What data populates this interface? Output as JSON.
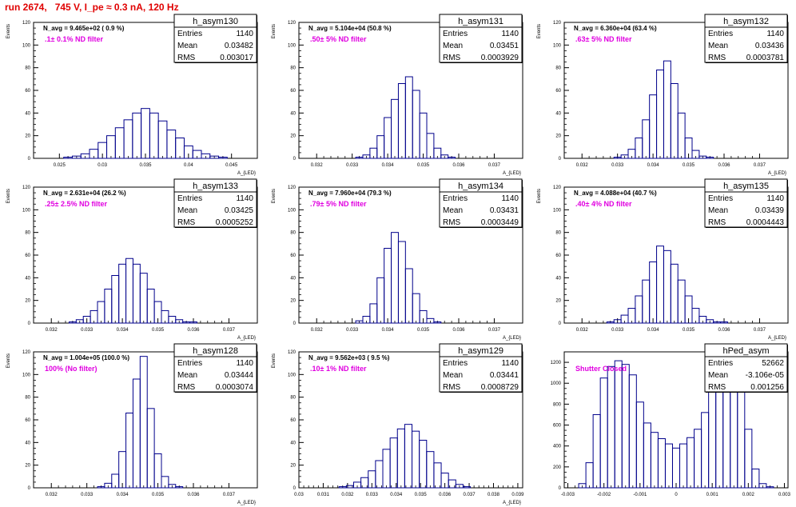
{
  "page_title": "run 2674,   745 V, I_pe ≈ 0.3 nA, 120 Hz",
  "colors": {
    "histogram": "#00008b",
    "annotation": "#e000e0",
    "title": "#e00000",
    "axis": "#000000"
  },
  "chart_data": [
    {
      "type": "histogram",
      "name": "h_asym130",
      "avg": "N_avg = 9.465e+02 ( 0.9 %)",
      "filter": ".1± 0.1% ND filter",
      "ylabel": "Events",
      "xlabel": "A_{LED}",
      "stats": [
        {
          "label": "Entries",
          "value": "1140"
        },
        {
          "label": "Mean",
          "value": "0.03482"
        },
        {
          "label": "RMS",
          "value": "0.003017"
        }
      ],
      "xlim": [
        0.022,
        0.048
      ],
      "ylim": [
        0,
        120
      ],
      "xticks": [
        0.025,
        0.03,
        0.035,
        0.04,
        0.045
      ],
      "xtick_labels": [
        "0.025",
        "0.03",
        "0.035",
        "0.04",
        "0.045"
      ],
      "yticks": [
        0,
        20,
        40,
        60,
        80,
        100,
        120
      ],
      "x": [
        0.025,
        0.026,
        0.027,
        0.028,
        0.029,
        0.03,
        0.031,
        0.032,
        0.033,
        0.034,
        0.035,
        0.036,
        0.037,
        0.038,
        0.039,
        0.04,
        0.041,
        0.042,
        0.043,
        0.044,
        0.045
      ],
      "y": [
        0,
        1,
        2,
        4,
        8,
        14,
        20,
        27,
        34,
        40,
        44,
        40,
        33,
        25,
        18,
        11,
        7,
        4,
        2,
        1,
        0
      ]
    },
    {
      "type": "histogram",
      "name": "h_asym131",
      "avg": "N_avg = 5.104e+04 (50.8 %)",
      "filter": ".50± 5% ND filter",
      "ylabel": "Events",
      "xlabel": "A_{LED}",
      "stats": [
        {
          "label": "Entries",
          "value": "1140"
        },
        {
          "label": "Mean",
          "value": "0.03451"
        },
        {
          "label": "RMS",
          "value": "0.0003929"
        }
      ],
      "xlim": [
        0.0315,
        0.0378
      ],
      "ylim": [
        0,
        120
      ],
      "xticks": [
        0.032,
        0.033,
        0.034,
        0.035,
        0.036,
        0.037
      ],
      "xtick_labels": [
        "0.032",
        "0.033",
        "0.034",
        "0.035",
        "0.036",
        "0.037"
      ],
      "yticks": [
        0,
        20,
        40,
        60,
        80,
        100,
        120
      ],
      "x": [
        0.0332,
        0.0334,
        0.0336,
        0.0338,
        0.034,
        0.0342,
        0.0344,
        0.0346,
        0.0348,
        0.035,
        0.0352,
        0.0354,
        0.0356,
        0.0358
      ],
      "y": [
        1,
        3,
        9,
        20,
        36,
        52,
        66,
        72,
        60,
        40,
        22,
        9,
        3,
        1
      ]
    },
    {
      "type": "histogram",
      "name": "h_asym132",
      "avg": "N_avg = 6.360e+04 (63.4 %)",
      "filter": ".63± 5% ND filter",
      "ylabel": "Events",
      "xlabel": "A_{LED}",
      "stats": [
        {
          "label": "Entries",
          "value": "1140"
        },
        {
          "label": "Mean",
          "value": "0.03436"
        },
        {
          "label": "RMS",
          "value": "0.0003781"
        }
      ],
      "xlim": [
        0.0315,
        0.0378
      ],
      "ylim": [
        0,
        120
      ],
      "xticks": [
        0.032,
        0.033,
        0.034,
        0.035,
        0.036,
        0.037
      ],
      "xtick_labels": [
        "0.032",
        "0.033",
        "0.034",
        "0.035",
        "0.036",
        "0.037"
      ],
      "yticks": [
        0,
        20,
        40,
        60,
        80,
        100,
        120
      ],
      "x": [
        0.033,
        0.0332,
        0.0334,
        0.0336,
        0.0338,
        0.034,
        0.0342,
        0.0344,
        0.0346,
        0.0348,
        0.035,
        0.0352,
        0.0354,
        0.0356
      ],
      "y": [
        1,
        3,
        8,
        18,
        34,
        56,
        78,
        86,
        66,
        40,
        18,
        7,
        2,
        1
      ]
    },
    {
      "type": "histogram",
      "name": "h_asym133",
      "avg": "N_avg = 2.631e+04 (26.2 %)",
      "filter": ".25± 2.5% ND filter",
      "ylabel": "Events",
      "xlabel": "A_{LED}",
      "stats": [
        {
          "label": "Entries",
          "value": "1140"
        },
        {
          "label": "Mean",
          "value": "0.03425"
        },
        {
          "label": "RMS",
          "value": "0.0005252"
        }
      ],
      "xlim": [
        0.0315,
        0.0378
      ],
      "ylim": [
        0,
        120
      ],
      "xticks": [
        0.032,
        0.033,
        0.034,
        0.035,
        0.036,
        0.037
      ],
      "xtick_labels": [
        "0.032",
        "0.033",
        "0.034",
        "0.035",
        "0.036",
        "0.037"
      ],
      "yticks": [
        0,
        20,
        40,
        60,
        80,
        100,
        120
      ],
      "x": [
        0.0326,
        0.0328,
        0.033,
        0.0332,
        0.0334,
        0.0336,
        0.0338,
        0.034,
        0.0342,
        0.0344,
        0.0346,
        0.0348,
        0.035,
        0.0352,
        0.0354,
        0.0356,
        0.0358,
        0.036
      ],
      "y": [
        1,
        3,
        6,
        11,
        19,
        30,
        42,
        52,
        57,
        52,
        44,
        30,
        19,
        11,
        6,
        3,
        1,
        1
      ]
    },
    {
      "type": "histogram",
      "name": "h_asym134",
      "avg": "N_avg = 7.960e+04 (79.3 %)",
      "filter": ".79± 5% ND filter",
      "ylabel": "Events",
      "xlabel": "A_{LED}",
      "stats": [
        {
          "label": "Entries",
          "value": "1140"
        },
        {
          "label": "Mean",
          "value": "0.03431"
        },
        {
          "label": "RMS",
          "value": "0.0003449"
        }
      ],
      "xlim": [
        0.0315,
        0.0378
      ],
      "ylim": [
        0,
        120
      ],
      "xticks": [
        0.032,
        0.033,
        0.034,
        0.035,
        0.036,
        0.037
      ],
      "xtick_labels": [
        "0.032",
        "0.033",
        "0.034",
        "0.035",
        "0.036",
        "0.037"
      ],
      "yticks": [
        0,
        20,
        40,
        60,
        80,
        100,
        120
      ],
      "x": [
        0.0332,
        0.0334,
        0.0336,
        0.0338,
        0.034,
        0.0342,
        0.0344,
        0.0346,
        0.0348,
        0.035,
        0.0352,
        0.0354
      ],
      "y": [
        2,
        6,
        17,
        40,
        66,
        80,
        72,
        48,
        26,
        11,
        4,
        1
      ]
    },
    {
      "type": "histogram",
      "name": "h_asym135",
      "avg": "N_avg = 4.088e+04 (40.7 %)",
      "filter": ".40± 4% ND filter",
      "ylabel": "Events",
      "xlabel": "A_{LED}",
      "stats": [
        {
          "label": "Entries",
          "value": "1140"
        },
        {
          "label": "Mean",
          "value": "0.03439"
        },
        {
          "label": "RMS",
          "value": "0.0004443"
        }
      ],
      "xlim": [
        0.0315,
        0.0378
      ],
      "ylim": [
        0,
        120
      ],
      "xticks": [
        0.032,
        0.033,
        0.034,
        0.035,
        0.036,
        0.037
      ],
      "xtick_labels": [
        "0.032",
        "0.033",
        "0.034",
        "0.035",
        "0.036",
        "0.037"
      ],
      "yticks": [
        0,
        20,
        40,
        60,
        80,
        100,
        120
      ],
      "x": [
        0.0328,
        0.033,
        0.0332,
        0.0334,
        0.0336,
        0.0338,
        0.034,
        0.0342,
        0.0344,
        0.0346,
        0.0348,
        0.035,
        0.0352,
        0.0354,
        0.0356,
        0.0358,
        0.036
      ],
      "y": [
        1,
        3,
        7,
        13,
        24,
        38,
        54,
        68,
        64,
        52,
        38,
        24,
        13,
        6,
        3,
        1,
        1
      ]
    },
    {
      "type": "histogram",
      "name": "h_asym128",
      "avg": "N_avg = 1.004e+05 (100.0 %)",
      "filter": "100% (No filter)",
      "ylabel": "Events",
      "xlabel": "A_{LED}",
      "stats": [
        {
          "label": "Entries",
          "value": "1140"
        },
        {
          "label": "Mean",
          "value": "0.03444"
        },
        {
          "label": "RMS",
          "value": "0.0003074"
        }
      ],
      "xlim": [
        0.0315,
        0.0378
      ],
      "ylim": [
        0,
        120
      ],
      "xticks": [
        0.032,
        0.033,
        0.034,
        0.035,
        0.036,
        0.037
      ],
      "xtick_labels": [
        "0.032",
        "0.033",
        "0.034",
        "0.035",
        "0.036",
        "0.037"
      ],
      "yticks": [
        0,
        20,
        40,
        60,
        80,
        100,
        120
      ],
      "x": [
        0.0334,
        0.0336,
        0.0338,
        0.034,
        0.0342,
        0.0344,
        0.0346,
        0.0348,
        0.035,
        0.0352,
        0.0354,
        0.0356
      ],
      "y": [
        1,
        4,
        12,
        32,
        66,
        96,
        116,
        70,
        30,
        10,
        3,
        1
      ]
    },
    {
      "type": "histogram",
      "name": "h_asym129",
      "avg": "N_avg = 9.562e+03 ( 9.5 %)",
      "filter": ".10± 1% ND filter",
      "ylabel": "Events",
      "xlabel": "A_{LED}",
      "stats": [
        {
          "label": "Entries",
          "value": "1140"
        },
        {
          "label": "Mean",
          "value": "0.03441"
        },
        {
          "label": "RMS",
          "value": "0.0008729"
        }
      ],
      "xlim": [
        0.03,
        0.0392
      ],
      "ylim": [
        0,
        120
      ],
      "xticks": [
        0.03,
        0.031,
        0.032,
        0.033,
        0.034,
        0.035,
        0.036,
        0.037,
        0.038,
        0.039
      ],
      "xtick_labels": [
        "0.03",
        "0.031",
        "0.032",
        "0.033",
        "0.034",
        "0.035",
        "0.036",
        "0.037",
        "0.038",
        "0.039"
      ],
      "yticks": [
        0,
        20,
        40,
        60,
        80,
        100,
        120
      ],
      "x": [
        0.0318,
        0.0321,
        0.0324,
        0.0327,
        0.033,
        0.0333,
        0.0336,
        0.0339,
        0.0342,
        0.0345,
        0.0348,
        0.0351,
        0.0354,
        0.0357,
        0.036,
        0.0363,
        0.0366,
        0.0369
      ],
      "y": [
        1,
        2,
        5,
        9,
        15,
        24,
        34,
        44,
        52,
        56,
        50,
        42,
        32,
        22,
        13,
        7,
        3,
        1
      ]
    },
    {
      "type": "histogram",
      "name": "hPed_asym",
      "avg": "",
      "filter": "Shutter Closed",
      "ylabel": "",
      "xlabel": "",
      "stats": [
        {
          "label": "Entries",
          "value": "52662"
        },
        {
          "label": "Mean",
          "value": "-3.106e-05"
        },
        {
          "label": "RMS",
          "value": "0.001256"
        }
      ],
      "xlim": [
        -0.0031,
        0.0031
      ],
      "ylim": [
        0,
        1300
      ],
      "xticks": [
        -0.003,
        -0.002,
        -0.001,
        0,
        0.001,
        0.002,
        0.003
      ],
      "xtick_labels": [
        "-0.003",
        "-0.002",
        "-0.001",
        "0",
        "0.001",
        "0.002",
        "0.003"
      ],
      "yticks": [
        0,
        200,
        400,
        600,
        800,
        1000,
        1200
      ],
      "x": [
        -0.0026,
        -0.0024,
        -0.0022,
        -0.002,
        -0.0018,
        -0.0016,
        -0.0014,
        -0.0012,
        -0.001,
        -0.0008,
        -0.0006,
        -0.0004,
        -0.0002,
        0.0,
        0.0002,
        0.0004,
        0.0006,
        0.0008,
        0.001,
        0.0012,
        0.0014,
        0.0016,
        0.0018,
        0.002,
        0.0022,
        0.0024,
        0.0026
      ],
      "y": [
        40,
        240,
        700,
        1050,
        1160,
        1215,
        1180,
        1080,
        820,
        620,
        530,
        470,
        420,
        380,
        420,
        480,
        560,
        720,
        980,
        1080,
        1140,
        1120,
        960,
        560,
        180,
        40,
        10
      ]
    }
  ]
}
